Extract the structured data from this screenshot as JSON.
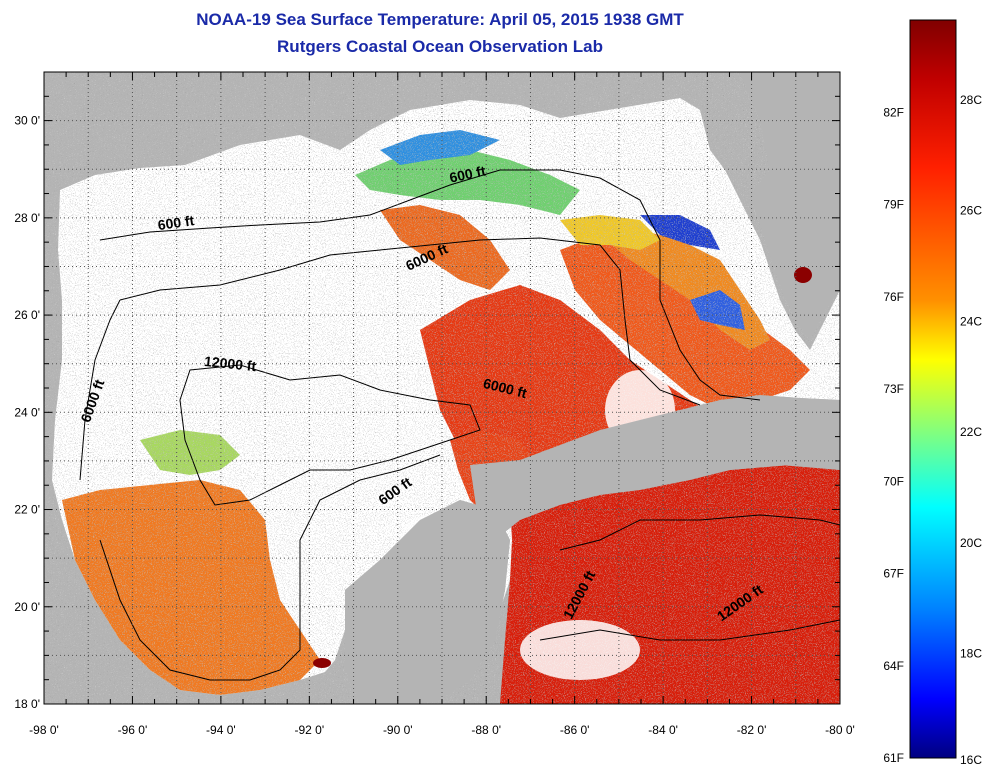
{
  "title": {
    "line1": "NOAA-19 Sea Surface Temperature:  April 05, 2015 1938 GMT",
    "line2": "Rutgers Coastal Ocean Observation Lab"
  },
  "map": {
    "lon_range": [
      -98,
      -80
    ],
    "lat_range": [
      18,
      31
    ],
    "lon_ticks": [
      "-98 0'",
      "-96 0'",
      "-94 0'",
      "-92 0'",
      "-90 0'",
      "-88 0'",
      "-86 0'",
      "-84 0'",
      "-82 0'",
      "-80 0'"
    ],
    "lat_ticks": [
      "18 0'",
      "20 0'",
      "22 0'",
      "24 0'",
      "26 0'",
      "28 0'",
      "30 0'"
    ],
    "contour_labels": [
      {
        "text": "600 ft"
      },
      {
        "text": "600 ft"
      },
      {
        "text": "6000 ft"
      },
      {
        "text": "6000 ft"
      },
      {
        "text": "6000 ft"
      },
      {
        "text": "12000 ft"
      },
      {
        "text": "600 ft"
      },
      {
        "text": "12000 ft"
      },
      {
        "text": "12000 ft"
      }
    ],
    "colors": {
      "land": "#b4b4b4",
      "cloud": "#ffffff",
      "warm": "#e8401c",
      "hot": "#d8180c",
      "orange": "#f07820",
      "yellow": "#f0d020",
      "green": "#70d070",
      "cyan": "#30c8e0",
      "blue": "#2040d0"
    }
  },
  "colorbar": {
    "fahrenheit_labels": [
      "82F",
      "79F",
      "76F",
      "73F",
      "70F",
      "67F",
      "64F",
      "61F"
    ],
    "celsius_labels": [
      "28C",
      "26C",
      "24C",
      "22C",
      "20C",
      "18C",
      "16C"
    ],
    "scale_colors": [
      "#800000",
      "#c00000",
      "#ff2000",
      "#ff8000",
      "#ffff00",
      "#80ff80",
      "#00ffff",
      "#0080ff",
      "#0000ff",
      "#000080"
    ]
  }
}
